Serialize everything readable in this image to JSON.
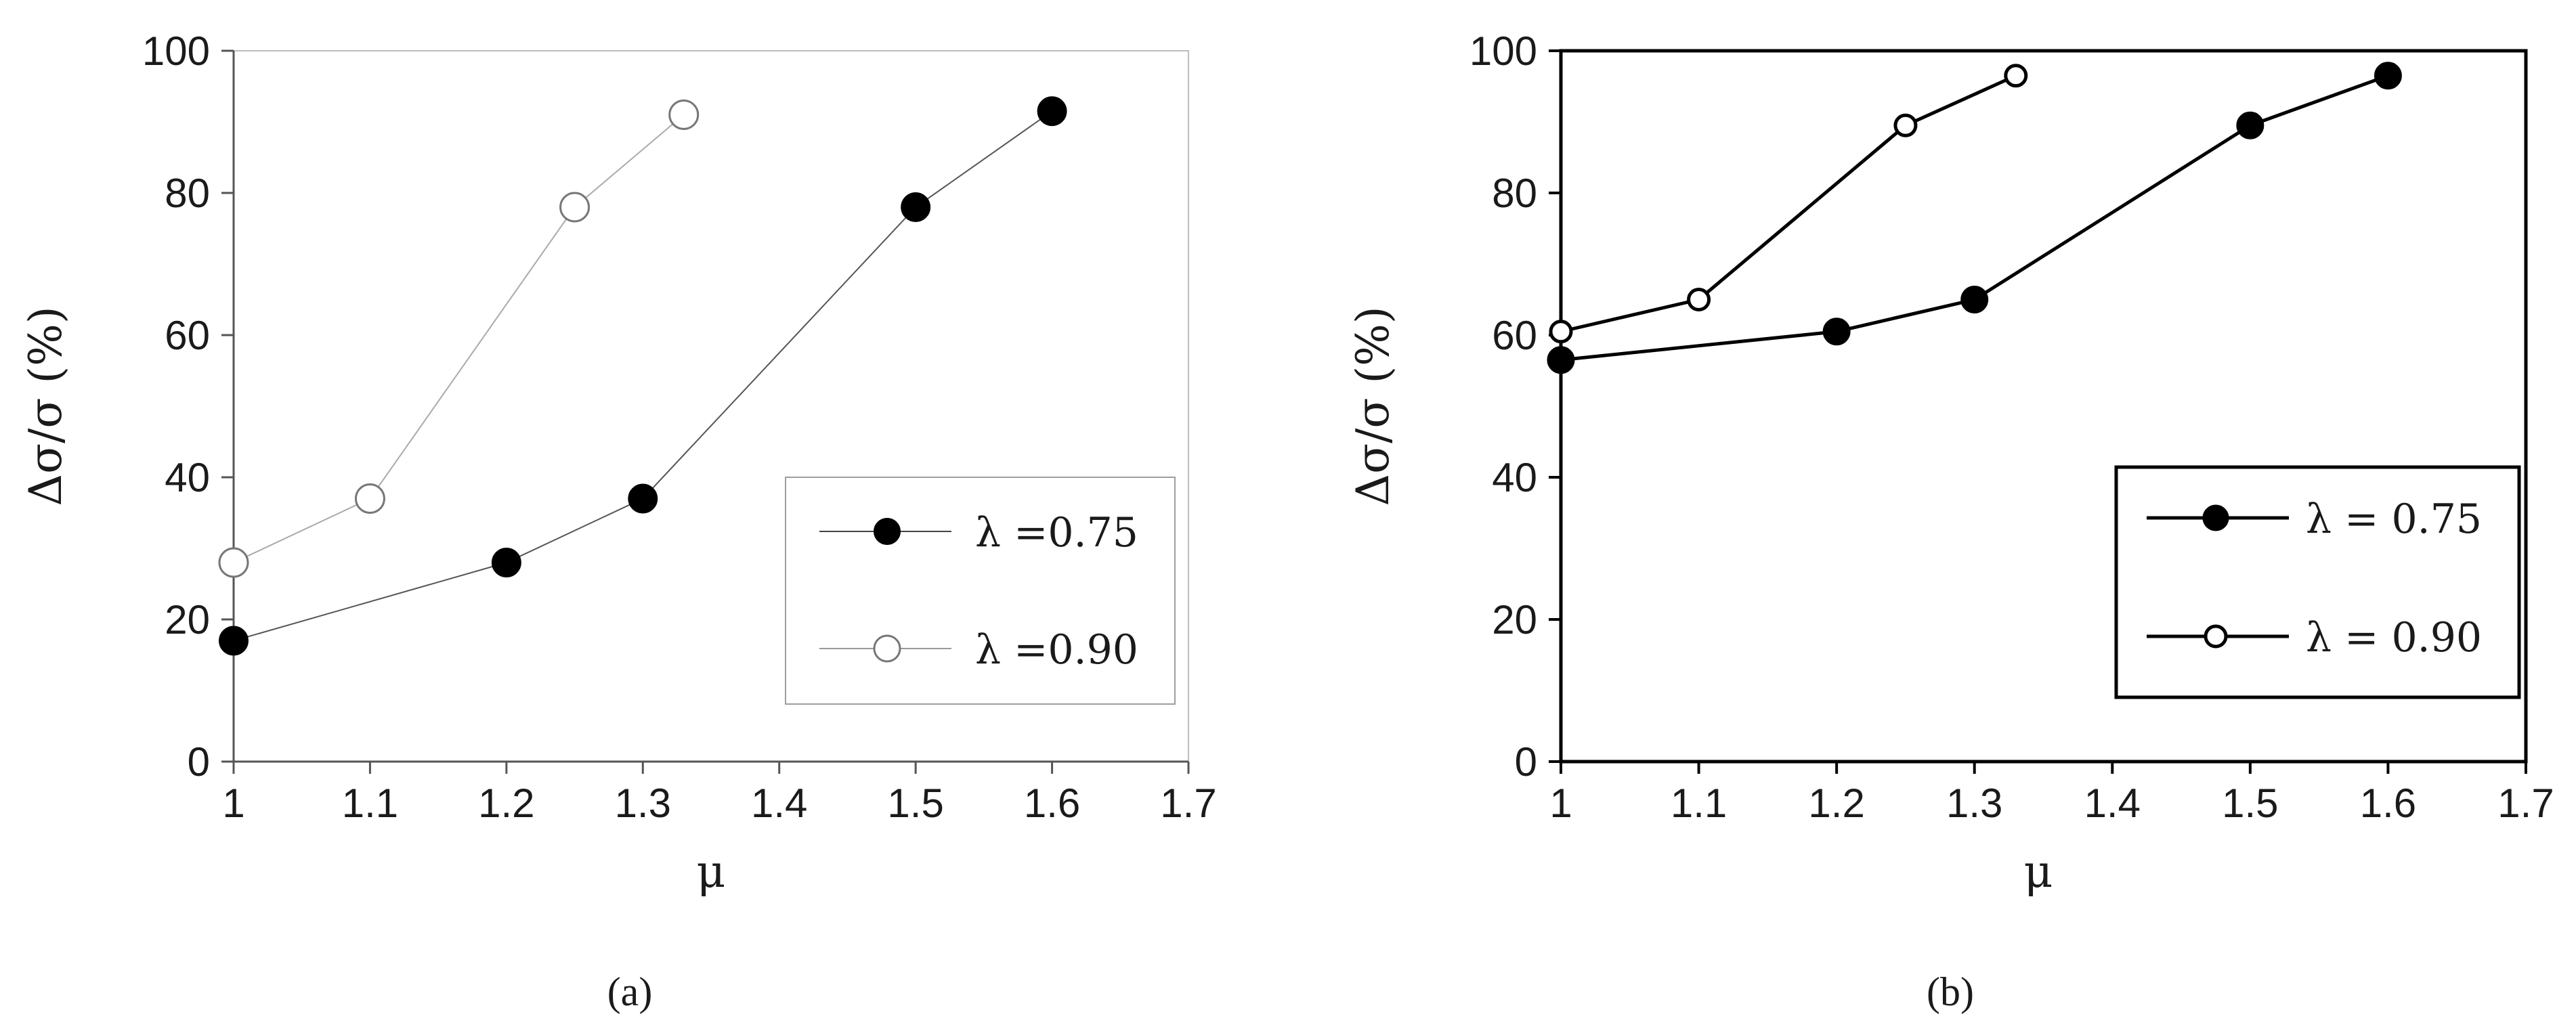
{
  "chart_data": [
    {
      "type": "line",
      "caption": "(a)",
      "xlabel": "μ",
      "ylabel": "Δσ/σ (%)",
      "xlim": [
        1,
        1.7
      ],
      "ylim": [
        0,
        100
      ],
      "xticks": [
        "1",
        "1.1",
        "1.2",
        "1.3",
        "1.4",
        "1.5",
        "1.6",
        "1.7"
      ],
      "yticks": [
        "0",
        "20",
        "40",
        "60",
        "80",
        "100"
      ],
      "grid": false,
      "legend_position": "right",
      "series": [
        {
          "name": "λ =0.75",
          "marker": "filled-circle",
          "color": "#000000",
          "x": [
            1.0,
            1.2,
            1.3,
            1.5,
            1.6
          ],
          "y": [
            17,
            28,
            37,
            78,
            91.5
          ]
        },
        {
          "name": "λ =0.90",
          "marker": "open-circle",
          "color": "#888888",
          "x": [
            1.0,
            1.1,
            1.25,
            1.33
          ],
          "y": [
            28,
            37,
            78,
            91
          ]
        }
      ]
    },
    {
      "type": "line",
      "caption": "(b)",
      "xlabel": "μ",
      "ylabel": "Δσ/σ (%)",
      "xlim": [
        1,
        1.7
      ],
      "ylim": [
        0,
        100
      ],
      "xticks": [
        "1",
        "1.1",
        "1.2",
        "1.3",
        "1.4",
        "1.5",
        "1.6",
        "1.7"
      ],
      "yticks": [
        "0",
        "20",
        "40",
        "60",
        "80",
        "100"
      ],
      "grid": false,
      "legend_position": "right",
      "series": [
        {
          "name": "λ = 0.75",
          "marker": "filled-circle",
          "color": "#000000",
          "x": [
            1.0,
            1.2,
            1.3,
            1.5,
            1.6
          ],
          "y": [
            56.5,
            60.5,
            65,
            89.5,
            96.5
          ]
        },
        {
          "name": "λ = 0.90",
          "marker": "open-circle",
          "color": "#000000",
          "x": [
            1.0,
            1.1,
            1.25,
            1.33
          ],
          "y": [
            60.5,
            65,
            89.5,
            96.5
          ]
        }
      ]
    }
  ]
}
